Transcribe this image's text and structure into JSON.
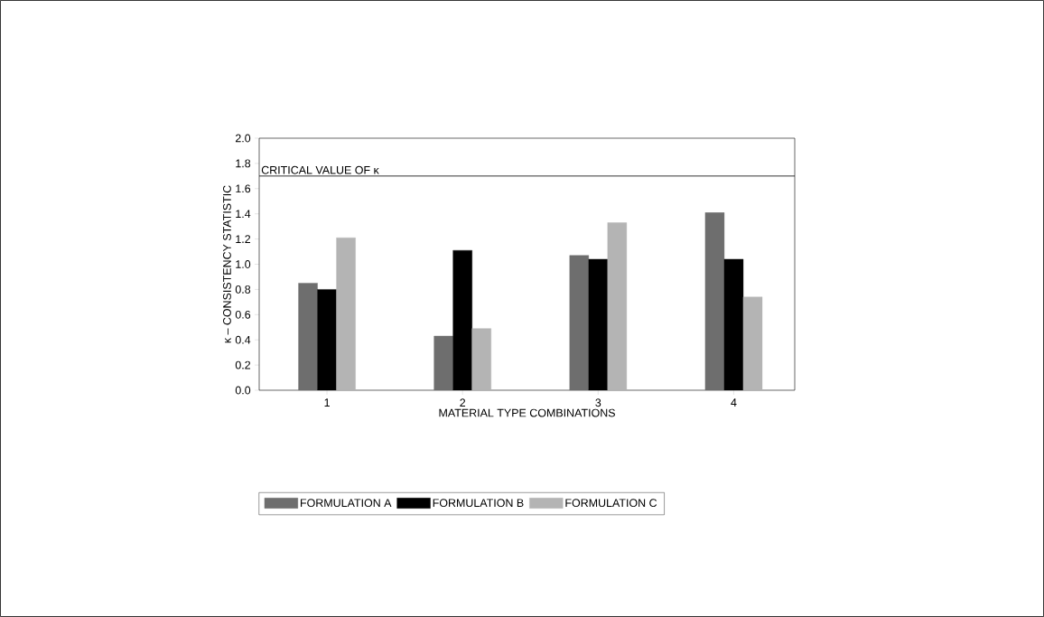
{
  "chart_data": {
    "type": "bar",
    "xlabel": "MATERIAL TYPE COMBINATIONS",
    "ylabel": "κ – CONSISTENCY STATISTIC",
    "categories": [
      "1",
      "2",
      "3",
      "4"
    ],
    "series": [
      {
        "name": "FORMULATION A",
        "color": "#6e6e6e",
        "values": [
          0.85,
          0.43,
          1.07,
          1.41
        ]
      },
      {
        "name": "FORMULATION B",
        "color": "#000000",
        "values": [
          0.8,
          1.11,
          1.04,
          1.04
        ]
      },
      {
        "name": "FORMULATION C",
        "color": "#b4b4b4",
        "values": [
          1.21,
          0.49,
          1.33,
          0.74
        ]
      }
    ],
    "ylim": [
      0,
      2.0
    ],
    "yticks": [
      {
        "value": 0,
        "label": "0.0"
      },
      0.2,
      0.4,
      0.6,
      0.8,
      {
        "value": 1,
        "label": "1.0"
      },
      1.2,
      1.4,
      1.6,
      1.8,
      {
        "value": 2,
        "label": "2.0"
      }
    ],
    "ref_lines": [
      {
        "axis": "y",
        "value": 1.7,
        "label": "CRITICAL VALUE OF κ"
      }
    ],
    "legend": "bottom",
    "grid": false
  }
}
